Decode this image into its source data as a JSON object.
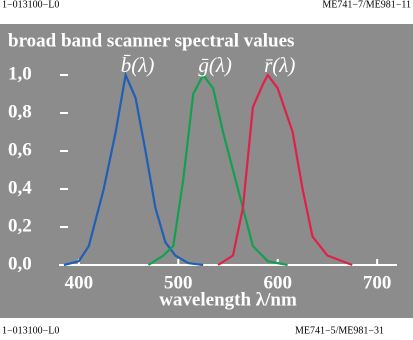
{
  "header": {
    "left": "1−013100−L0",
    "right": "ME741−7/ME981−11"
  },
  "footer": {
    "left": "1−013100−L0",
    "right": "ME741−5/ME981−31"
  },
  "chart_data": {
    "type": "line",
    "title": "broad band scanner spectral values",
    "x_label": "wavelength λ/nm",
    "xlim": [
      380,
      720
    ],
    "xticks": [
      400,
      500,
      600,
      700
    ],
    "ylim": [
      0,
      1
    ],
    "yticks": [
      {
        "value": 0,
        "label": "0,0"
      },
      {
        "value": 0.2,
        "label": "0,2"
      },
      {
        "value": 0.4,
        "label": "0,4"
      },
      {
        "value": 0.6,
        "label": "0,6"
      },
      {
        "value": 0.8,
        "label": "0,8"
      },
      {
        "value": 1,
        "label": "1,0"
      }
    ],
    "series": [
      {
        "name": "b̄(λ)",
        "color": "#1f5fb4",
        "x": [
          385,
          400,
          410,
          425,
          437,
          447,
          457,
          467,
          477,
          487,
          497,
          510,
          525
        ],
        "values": [
          0,
          0.02,
          0.1,
          0.4,
          0.7,
          1.0,
          0.88,
          0.6,
          0.3,
          0.12,
          0.05,
          0.01,
          0
        ]
      },
      {
        "name": "ḡ(λ)",
        "color": "#12a050",
        "x": [
          470,
          485,
          495,
          505,
          515,
          525,
          535,
          545,
          560,
          575,
          590,
          610
        ],
        "values": [
          0,
          0.05,
          0.1,
          0.45,
          0.9,
          1.0,
          0.93,
          0.7,
          0.4,
          0.1,
          0.02,
          0
        ]
      },
      {
        "name": "r̄(λ)",
        "color": "#e0204a",
        "x": [
          540,
          555,
          565,
          575,
          585,
          590,
          600,
          615,
          625,
          635,
          650,
          675
        ],
        "values": [
          0,
          0.05,
          0.3,
          0.83,
          0.95,
          1.0,
          0.93,
          0.7,
          0.4,
          0.15,
          0.05,
          0
        ]
      }
    ]
  }
}
